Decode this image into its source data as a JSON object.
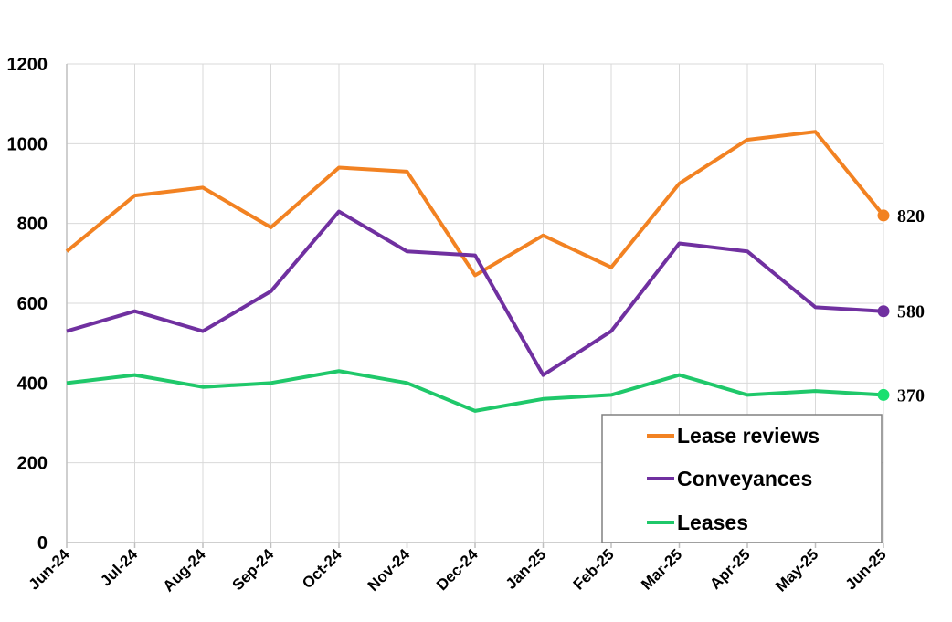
{
  "chart_data": {
    "type": "line",
    "categories": [
      "Jun-24",
      "Jul-24",
      "Aug-24",
      "Sep-24",
      "Oct-24",
      "Nov-24",
      "Dec-24",
      "Jan-25",
      "Feb-25",
      "Mar-25",
      "Apr-25",
      "May-25",
      "Jun-25"
    ],
    "ylim": [
      0,
      1200
    ],
    "yticks": [
      "0",
      "200",
      "400",
      "600",
      "800",
      "1000",
      "1200"
    ],
    "grid": true,
    "legend_position": "bottom-right",
    "series": [
      {
        "name": "Lease reviews",
        "color": "#F28222",
        "values": [
          730,
          870,
          890,
          790,
          940,
          930,
          670,
          770,
          690,
          900,
          1010,
          1030,
          820
        ],
        "end_label": "820"
      },
      {
        "name": "Conveyances",
        "color": "#7030A0",
        "values": [
          530,
          580,
          530,
          630,
          830,
          730,
          720,
          420,
          530,
          750,
          730,
          590,
          580
        ],
        "end_label": "580"
      },
      {
        "name": "Leases",
        "color": "#1FC86A",
        "values": [
          400,
          420,
          390,
          400,
          430,
          400,
          330,
          360,
          370,
          420,
          370,
          380,
          370
        ],
        "end_label": "370"
      }
    ],
    "end_marker_colors": [
      "#F28222",
      "#7030A0",
      "#19E070"
    ]
  }
}
